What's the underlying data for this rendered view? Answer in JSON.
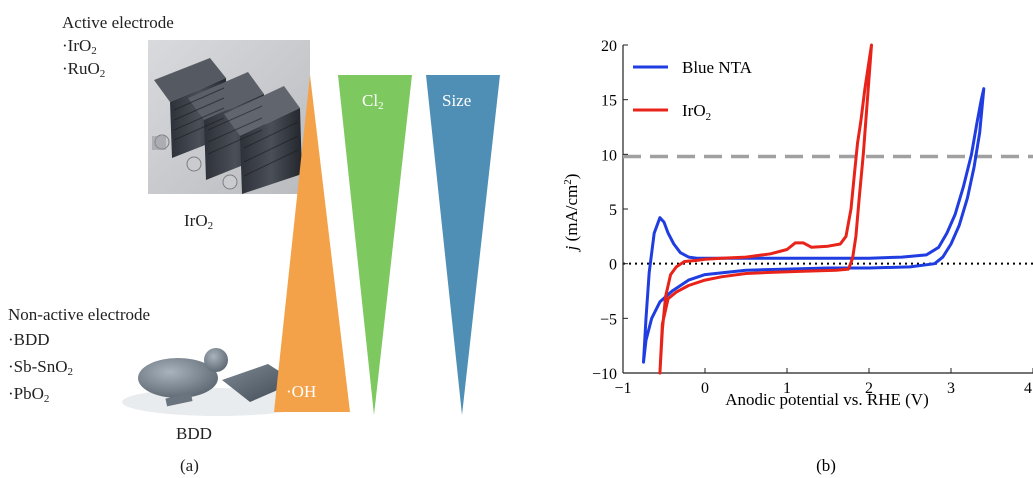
{
  "panel_a": {
    "active_title": "Active electrode",
    "active_items": [
      {
        "base": "·IrO",
        "sub": "2"
      },
      {
        "base": "·RuO",
        "sub": "2"
      }
    ],
    "active_photo_caption": {
      "base": "IrO",
      "sub": "2"
    },
    "nonactive_title": "Non-active electrode",
    "nonactive_items": [
      {
        "base": "·BDD",
        "sub": ""
      },
      {
        "base": "·Sb-SnO",
        "sub": "2"
      },
      {
        "base": "·PbO",
        "sub": "2"
      }
    ],
    "bdd_photo_caption": "BDD",
    "oh_label": "·OH",
    "cl2_label": {
      "base": "Cl",
      "sub": "2"
    },
    "size_label": "Size",
    "panel_label": "(a)",
    "colors": {
      "oh": "#f4a24a",
      "cl2": "#7ec860",
      "size": "#4f8fb6"
    }
  },
  "panel_b": {
    "panel_label": "(b)",
    "xlabel": "Anodic potential vs. RHE (V)",
    "ylabel_italic": "j",
    "ylabel_rest": " (mA/cm",
    "ylabel_sup": "2",
    "ylabel_close": ")",
    "x_ticks": [
      "−1",
      "0",
      "1",
      "2",
      "3",
      "4"
    ],
    "y_ticks": [
      "−10",
      "−5",
      "0",
      "5",
      "10",
      "15",
      "20"
    ]
  },
  "chart_data": {
    "type": "line",
    "xlim": [
      -1,
      4
    ],
    "ylim": [
      -10,
      20
    ],
    "reference_lines": [
      {
        "y": 9.8,
        "style": "dashed",
        "color": "#a0a0a0"
      },
      {
        "y": 0,
        "style": "dotted",
        "color": "#000000"
      }
    ],
    "series": [
      {
        "name": "Blue NTA",
        "color": "#1f3de0",
        "x": [
          -0.75,
          -0.72,
          -0.68,
          -0.62,
          -0.55,
          -0.5,
          -0.45,
          -0.38,
          -0.3,
          -0.2,
          -0.1,
          0.0,
          0.1,
          0.3,
          0.6,
          1.0,
          1.5,
          2.0,
          2.4,
          2.7,
          2.85,
          2.95,
          3.05,
          3.15,
          3.25,
          3.32,
          3.37,
          3.4,
          3.35,
          3.28,
          3.2,
          3.1,
          3.0,
          2.9,
          2.8,
          2.5,
          2.0,
          1.5,
          1.0,
          0.5,
          0.0,
          -0.2,
          -0.4,
          -0.55,
          -0.65,
          -0.72,
          -0.75
        ],
        "y": [
          -9.0,
          -5.0,
          -0.8,
          2.8,
          4.2,
          3.8,
          2.8,
          1.8,
          1.0,
          0.6,
          0.5,
          0.5,
          0.5,
          0.5,
          0.5,
          0.5,
          0.5,
          0.5,
          0.6,
          0.8,
          1.5,
          2.8,
          4.5,
          7.0,
          10.0,
          13.0,
          15.0,
          16.0,
          12.0,
          8.8,
          6.0,
          3.5,
          1.8,
          0.6,
          0.0,
          -0.3,
          -0.4,
          -0.4,
          -0.5,
          -0.6,
          -1.0,
          -1.5,
          -2.5,
          -3.5,
          -5.0,
          -7.0,
          -9.0
        ]
      },
      {
        "name": "IrO",
        "name_sub": "2",
        "color": "#e8231a",
        "x": [
          -0.55,
          -0.52,
          -0.48,
          -0.42,
          -0.35,
          -0.25,
          -0.1,
          0.0,
          0.2,
          0.5,
          0.8,
          1.0,
          1.1,
          1.2,
          1.3,
          1.5,
          1.65,
          1.72,
          1.78,
          1.82,
          1.86,
          1.9,
          1.95,
          2.0,
          2.03,
          1.98,
          1.93,
          1.88,
          1.84,
          1.8,
          1.75,
          1.6,
          1.2,
          0.8,
          0.5,
          0.2,
          0.0,
          -0.2,
          -0.35,
          -0.45,
          -0.52,
          -0.55
        ],
        "y": [
          -10.0,
          -6.0,
          -3.0,
          -1.0,
          -0.3,
          0.2,
          0.3,
          0.4,
          0.5,
          0.6,
          0.9,
          1.3,
          1.9,
          1.9,
          1.5,
          1.6,
          1.8,
          2.5,
          5.0,
          8.0,
          11.0,
          13.0,
          16.0,
          18.5,
          20.0,
          15.0,
          10.0,
          6.0,
          2.5,
          0.5,
          -0.5,
          -0.6,
          -0.7,
          -0.8,
          -0.9,
          -1.2,
          -1.5,
          -2.0,
          -2.6,
          -3.2,
          -5.5,
          -10.0
        ]
      }
    ]
  }
}
